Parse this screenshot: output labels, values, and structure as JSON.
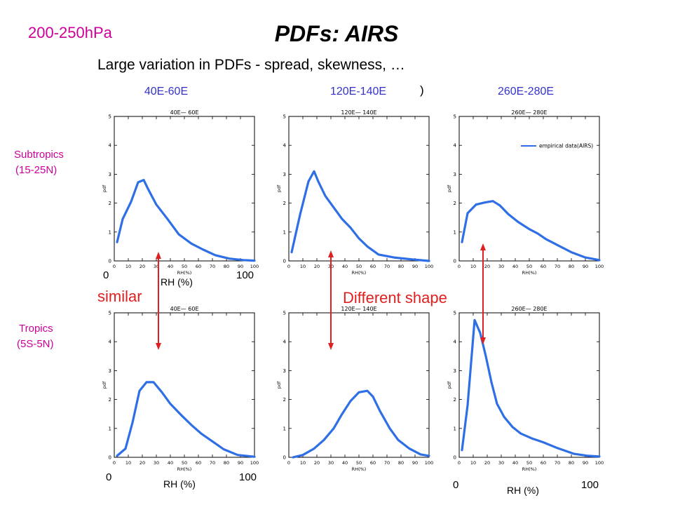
{
  "header": {
    "pressure_label": "200-250hPa",
    "title": "PDFs: AIRS",
    "subtitle": "Large variation in PDFs - spread, skewness, …"
  },
  "colors": {
    "magenta": "#cc0099",
    "blue_text": "#3333cc",
    "curve": "#2f6fe6",
    "arrow": "#e02020",
    "note": "#e02020"
  },
  "columns": [
    "40E-60E",
    "120E-140E",
    "260E-280E"
  ],
  "rows": [
    {
      "line1": "Subtropics",
      "line2": "(15-25N)"
    },
    {
      "line1": "Tropics",
      "line2": "(5S-5N)"
    }
  ],
  "stray_mark": ")",
  "annotations": {
    "similar": "similar",
    "different": "Different shape",
    "rh_unit": "RH (%)",
    "tick_min": "0",
    "tick_max": "100"
  },
  "chart_data": [
    {
      "type": "line",
      "panel": "subtropics-40E-60E",
      "title": "40E— 60E",
      "xlabel": "RH(%)",
      "ylabel": "pdf",
      "xlim": [
        0,
        100
      ],
      "ylim": [
        0,
        5
      ],
      "xticks": [
        0,
        10,
        20,
        30,
        40,
        50,
        60,
        70,
        80,
        90,
        100
      ],
      "yticks": [
        0,
        1,
        2,
        3,
        4,
        5
      ],
      "series": [
        {
          "x": [
            2,
            6,
            12,
            17,
            21,
            24,
            30,
            38,
            46,
            55,
            63,
            72,
            82,
            92,
            100
          ],
          "y": [
            0.65,
            1.45,
            2.05,
            2.72,
            2.8,
            2.5,
            1.95,
            1.45,
            0.92,
            0.6,
            0.4,
            0.2,
            0.08,
            0.03,
            0.01
          ]
        }
      ]
    },
    {
      "type": "line",
      "panel": "subtropics-120E-140E",
      "title": "120E— 140E",
      "xlabel": "RH(%)",
      "ylabel": "pdf",
      "xlim": [
        0,
        100
      ],
      "ylim": [
        0,
        5
      ],
      "xticks": [
        0,
        10,
        20,
        30,
        40,
        50,
        60,
        70,
        80,
        90,
        100
      ],
      "yticks": [
        0,
        1,
        2,
        3,
        4,
        5
      ],
      "series": [
        {
          "x": [
            2,
            8,
            14,
            18,
            21,
            26,
            32,
            38,
            44,
            50,
            56,
            64,
            75,
            88,
            100
          ],
          "y": [
            0.3,
            1.6,
            2.75,
            3.1,
            2.75,
            2.25,
            1.85,
            1.45,
            1.15,
            0.78,
            0.5,
            0.22,
            0.12,
            0.05,
            0.0
          ]
        }
      ]
    },
    {
      "type": "line",
      "panel": "subtropics-260E-280E",
      "title": "260E— 280E",
      "xlabel": "RH(%)",
      "ylabel": "pdf",
      "xlim": [
        0,
        100
      ],
      "ylim": [
        0,
        5
      ],
      "xticks": [
        0,
        10,
        20,
        30,
        40,
        50,
        60,
        70,
        80,
        90,
        100
      ],
      "yticks": [
        0,
        1,
        2,
        3,
        4,
        5
      ],
      "legend": "empirical data(AIRS)",
      "legend_position": "top-right",
      "series": [
        {
          "name": "empirical data(AIRS)",
          "x": [
            2,
            6,
            12,
            18,
            24,
            29,
            35,
            42,
            50,
            56,
            62,
            70,
            80,
            90,
            100
          ],
          "y": [
            0.65,
            1.65,
            1.95,
            2.02,
            2.07,
            1.92,
            1.62,
            1.35,
            1.1,
            0.95,
            0.75,
            0.55,
            0.3,
            0.12,
            0.03
          ]
        }
      ]
    },
    {
      "type": "line",
      "panel": "tropics-40E-60E",
      "title": "40E— 60E",
      "xlabel": "RH(%)",
      "ylabel": "pdf",
      "xlim": [
        0,
        100
      ],
      "ylim": [
        0,
        5
      ],
      "xticks": [
        0,
        10,
        20,
        30,
        40,
        50,
        60,
        70,
        80,
        90,
        100
      ],
      "yticks": [
        0,
        1,
        2,
        3,
        4,
        5
      ],
      "series": [
        {
          "x": [
            2,
            8,
            13,
            18,
            23,
            28,
            34,
            40,
            48,
            55,
            62,
            70,
            78,
            88,
            100
          ],
          "y": [
            0.05,
            0.3,
            1.2,
            2.3,
            2.6,
            2.6,
            2.25,
            1.85,
            1.45,
            1.12,
            0.82,
            0.55,
            0.28,
            0.08,
            0.02
          ]
        }
      ]
    },
    {
      "type": "line",
      "panel": "tropics-120E-140E",
      "title": "120E— 140E",
      "xlabel": "RH(%)",
      "ylabel": "pdf",
      "xlim": [
        0,
        100
      ],
      "ylim": [
        0,
        5
      ],
      "xticks": [
        0,
        10,
        20,
        30,
        40,
        50,
        60,
        70,
        80,
        90,
        100
      ],
      "yticks": [
        0,
        1,
        2,
        3,
        4,
        5
      ],
      "series": [
        {
          "x": [
            3,
            10,
            18,
            25,
            32,
            38,
            44,
            50,
            56,
            60,
            65,
            72,
            78,
            86,
            94,
            100
          ],
          "y": [
            0.0,
            0.08,
            0.3,
            0.6,
            1.0,
            1.5,
            1.95,
            2.25,
            2.3,
            2.1,
            1.6,
            1.0,
            0.6,
            0.3,
            0.1,
            0.05
          ]
        }
      ]
    },
    {
      "type": "line",
      "panel": "tropics-260E-280E",
      "title": "260E— 280E",
      "xlabel": "RH(%)",
      "ylabel": "pdf",
      "xlim": [
        0,
        100
      ],
      "ylim": [
        0,
        5
      ],
      "xticks": [
        0,
        10,
        20,
        30,
        40,
        50,
        60,
        70,
        80,
        90,
        100
      ],
      "yticks": [
        0,
        1,
        2,
        3,
        4,
        5
      ],
      "series": [
        {
          "x": [
            2,
            6,
            11,
            15,
            19,
            23,
            27,
            32,
            38,
            44,
            52,
            60,
            70,
            82,
            92,
            100
          ],
          "y": [
            0.25,
            1.8,
            4.75,
            4.3,
            3.5,
            2.6,
            1.85,
            1.4,
            1.05,
            0.82,
            0.65,
            0.52,
            0.32,
            0.12,
            0.05,
            0.03
          ]
        }
      ]
    }
  ]
}
